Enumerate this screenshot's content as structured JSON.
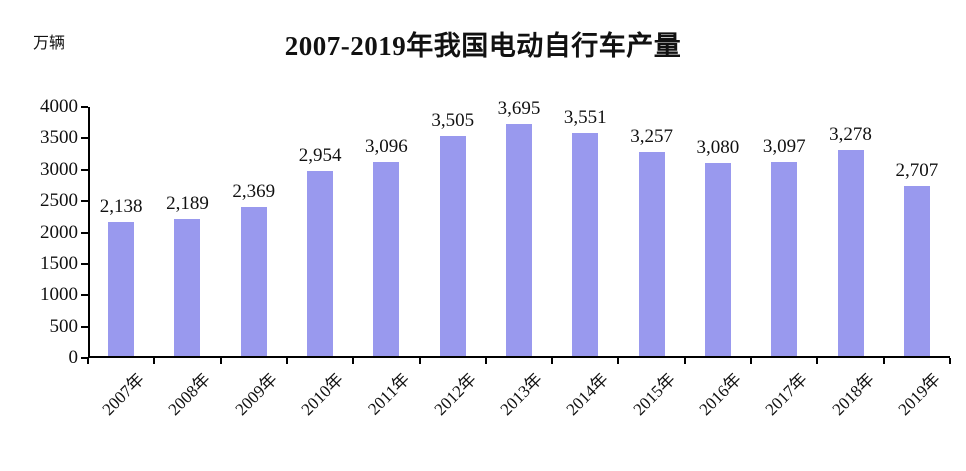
{
  "chart_data": {
    "type": "bar",
    "title": "2007-2019年我国电动自行车产量",
    "unit_label": "万辆",
    "categories": [
      "2007年",
      "2008年",
      "2009年",
      "2010年",
      "2011年",
      "2012年",
      "2013年",
      "2014年",
      "2015年",
      "2016年",
      "2017年",
      "2018年",
      "2019年"
    ],
    "values": [
      2138,
      2189,
      2369,
      2954,
      3096,
      3505,
      3695,
      3551,
      3257,
      3080,
      3097,
      3278,
      2707
    ],
    "value_labels": [
      "2,138",
      "2,189",
      "2,369",
      "2,954",
      "3,096",
      "3,505",
      "3,695",
      "3,551",
      "3,257",
      "3,080",
      "3,097",
      "3,278",
      "2,707"
    ],
    "xlabel": "",
    "ylabel": "",
    "ylim": [
      0,
      4000
    ],
    "yticks": [
      0,
      500,
      1000,
      1500,
      2000,
      2500,
      3000,
      3500,
      4000
    ],
    "grid": false,
    "legend": "none",
    "x_label_rotation_deg": 45,
    "bar_color": "#9999EE",
    "axis_color": "#000000",
    "text_color": "#111111",
    "background_color": "#FFFFFF"
  }
}
